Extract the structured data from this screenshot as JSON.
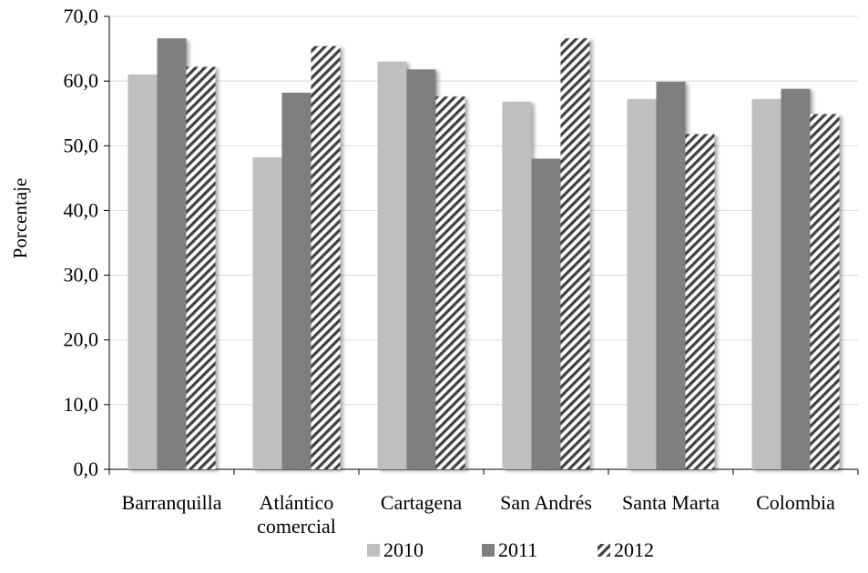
{
  "chart_data": {
    "type": "bar",
    "title": "",
    "xlabel": "",
    "ylabel": "Porcentaje",
    "ylim": [
      0,
      70
    ],
    "ytick_step": 10,
    "grid": true,
    "legend_placement": "bottom",
    "categories": [
      [
        "Barranquilla"
      ],
      [
        "Atlántico",
        "comercial"
      ],
      [
        "Cartagena"
      ],
      [
        "San Andrés"
      ],
      [
        "Santa Marta"
      ],
      [
        "Colombia"
      ]
    ],
    "yticks": [
      "0,0",
      "10,0",
      "20,0",
      "30,0",
      "40,0",
      "50,0",
      "60,0",
      "70,0"
    ],
    "series": [
      {
        "name": "2010",
        "color": "#bfbfbf",
        "pattern": "solid",
        "values": [
          61.0,
          48.2,
          63.0,
          56.8,
          57.2,
          57.2
        ]
      },
      {
        "name": "2011",
        "color": "#7f7f7f",
        "pattern": "solid",
        "values": [
          66.6,
          58.2,
          61.8,
          48.0,
          59.9,
          58.8
        ]
      },
      {
        "name": "2012",
        "color": "#404040",
        "pattern": "diagonal-hatch",
        "values": [
          62.2,
          65.4,
          57.6,
          66.6,
          51.8,
          54.9
        ]
      }
    ]
  }
}
